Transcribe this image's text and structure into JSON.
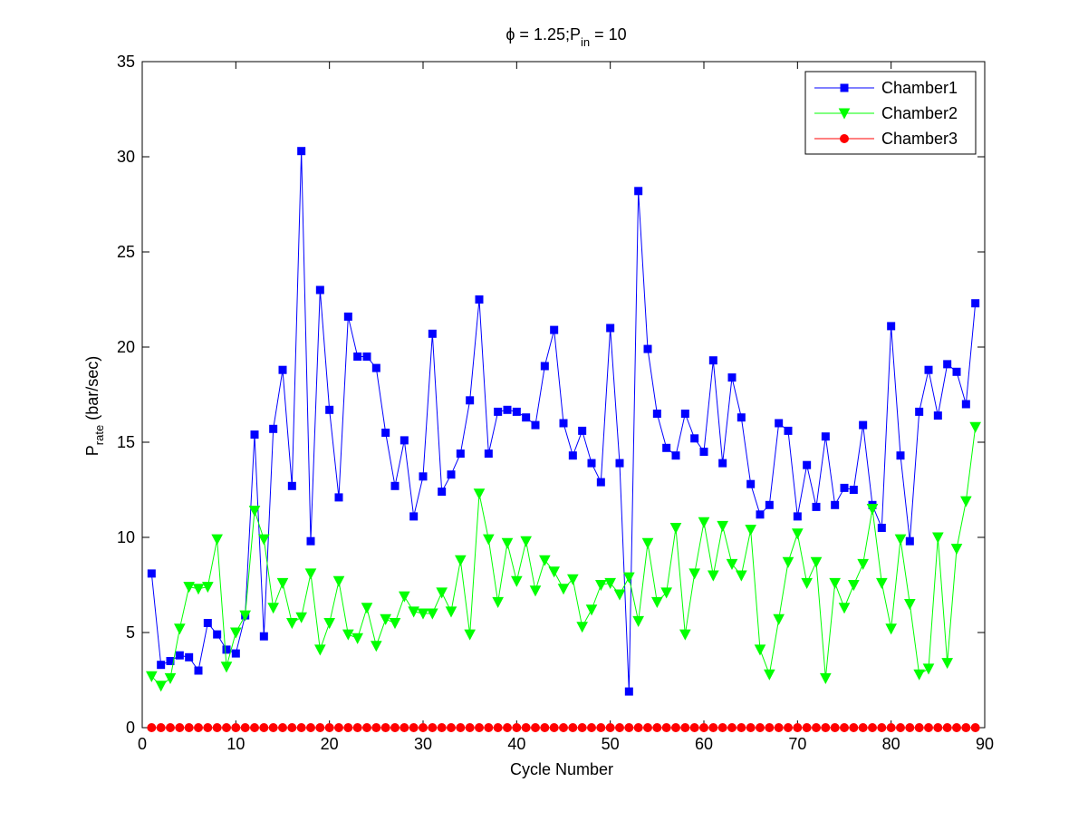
{
  "chart_data": {
    "type": "line",
    "title": {
      "base": "ϕ = 1.25;P",
      "sub": "in",
      "rest": " = 10"
    },
    "xlabel": "Cycle Number",
    "ylabel": {
      "base": "P",
      "sub": "rate",
      "rest": "  (bar/sec)"
    },
    "xlim": [
      0,
      90
    ],
    "ylim": [
      0,
      35
    ],
    "xticks": [
      0,
      10,
      20,
      30,
      40,
      50,
      60,
      70,
      80,
      90
    ],
    "yticks": [
      0,
      5,
      10,
      15,
      20,
      25,
      30,
      35
    ],
    "grid": false,
    "legend_position": "top-right",
    "x": [
      1,
      2,
      3,
      4,
      5,
      6,
      7,
      8,
      9,
      10,
      11,
      12,
      13,
      14,
      15,
      16,
      17,
      18,
      19,
      20,
      21,
      22,
      23,
      24,
      25,
      26,
      27,
      28,
      29,
      30,
      31,
      32,
      33,
      34,
      35,
      36,
      37,
      38,
      39,
      40,
      41,
      42,
      43,
      44,
      45,
      46,
      47,
      48,
      49,
      50,
      51,
      52,
      53,
      54,
      55,
      56,
      57,
      58,
      59,
      60,
      61,
      62,
      63,
      64,
      65,
      66,
      67,
      68,
      69,
      70,
      71,
      72,
      73,
      74,
      75,
      76,
      77,
      78,
      79,
      80,
      81,
      82,
      83,
      84,
      85,
      86,
      87,
      88,
      89
    ],
    "series": [
      {
        "name": "Chamber1",
        "color": "#0000ff",
        "marker": "square",
        "values": [
          8.1,
          3.3,
          3.5,
          3.8,
          3.7,
          3.0,
          5.5,
          4.9,
          4.1,
          3.9,
          5.9,
          15.4,
          4.8,
          15.7,
          18.8,
          12.7,
          30.3,
          9.8,
          23.0,
          16.7,
          12.1,
          21.6,
          19.5,
          19.5,
          18.9,
          15.5,
          12.7,
          15.1,
          11.1,
          13.2,
          20.7,
          12.4,
          13.3,
          14.4,
          17.2,
          22.5,
          14.4,
          16.6,
          16.7,
          16.6,
          16.3,
          15.9,
          19.0,
          20.9,
          16.0,
          14.3,
          15.6,
          13.9,
          12.9,
          21.0,
          13.9,
          1.9,
          28.2,
          19.9,
          16.5,
          14.7,
          14.3,
          16.5,
          15.2,
          14.5,
          19.3,
          13.9,
          18.4,
          16.3,
          12.8,
          11.2,
          11.7,
          16.0,
          15.6,
          11.1,
          13.8,
          11.6,
          15.3,
          11.7,
          12.6,
          12.5,
          15.9,
          11.7,
          10.5,
          21.1,
          14.3,
          9.8,
          16.6,
          18.8,
          16.4,
          19.1,
          18.7,
          17.0,
          22.3
        ]
      },
      {
        "name": "Chamber2",
        "color": "#00ff00",
        "marker": "triangle-down",
        "values": [
          2.7,
          2.2,
          2.6,
          5.2,
          7.4,
          7.3,
          7.4,
          9.9,
          3.2,
          5.0,
          5.9,
          11.4,
          9.9,
          6.3,
          7.6,
          5.5,
          5.8,
          8.1,
          4.1,
          5.5,
          7.7,
          4.9,
          4.7,
          6.3,
          4.3,
          5.7,
          5.5,
          6.9,
          6.1,
          6.0,
          6.0,
          7.1,
          6.1,
          8.8,
          4.9,
          12.3,
          9.9,
          6.6,
          9.7,
          7.7,
          9.8,
          7.2,
          8.8,
          8.2,
          7.3,
          7.8,
          5.3,
          6.2,
          7.5,
          7.6,
          7.0,
          7.9,
          5.6,
          9.7,
          6.6,
          7.1,
          10.5,
          4.9,
          8.1,
          10.8,
          8.0,
          10.6,
          8.6,
          8.0,
          10.4,
          4.1,
          2.8,
          5.7,
          8.7,
          10.2,
          7.6,
          8.7,
          2.6,
          7.6,
          6.3,
          7.5,
          8.6,
          11.5,
          7.6,
          5.2,
          9.9,
          6.5,
          2.8,
          3.1,
          10.0,
          3.4,
          9.4,
          11.9,
          15.8
        ]
      },
      {
        "name": "Chamber3",
        "color": "#ff0000",
        "marker": "circle",
        "values": [
          0,
          0,
          0,
          0,
          0,
          0,
          0,
          0,
          0,
          0,
          0,
          0,
          0,
          0,
          0,
          0,
          0,
          0,
          0,
          0,
          0,
          0,
          0,
          0,
          0,
          0,
          0,
          0,
          0,
          0,
          0,
          0,
          0,
          0,
          0,
          0,
          0,
          0,
          0,
          0,
          0,
          0,
          0,
          0,
          0,
          0,
          0,
          0,
          0,
          0,
          0,
          0,
          0,
          0,
          0,
          0,
          0,
          0,
          0,
          0,
          0,
          0,
          0,
          0,
          0,
          0,
          0,
          0,
          0,
          0,
          0,
          0,
          0,
          0,
          0,
          0,
          0,
          0,
          0,
          0,
          0,
          0,
          0,
          0,
          0,
          0,
          0,
          0,
          0
        ]
      }
    ]
  }
}
